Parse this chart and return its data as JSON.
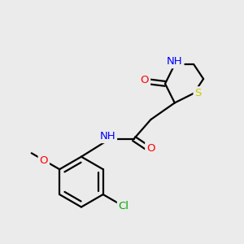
{
  "background_color": "#ebebeb",
  "atom_colors": {
    "C": "#000000",
    "H": "#7ab0b2",
    "N": "#0000ff",
    "O": "#ff0000",
    "S": "#cccc00",
    "Cl": "#00aa00"
  },
  "bond_color": "#000000",
  "bond_width": 1.6,
  "font_size": 9.5
}
